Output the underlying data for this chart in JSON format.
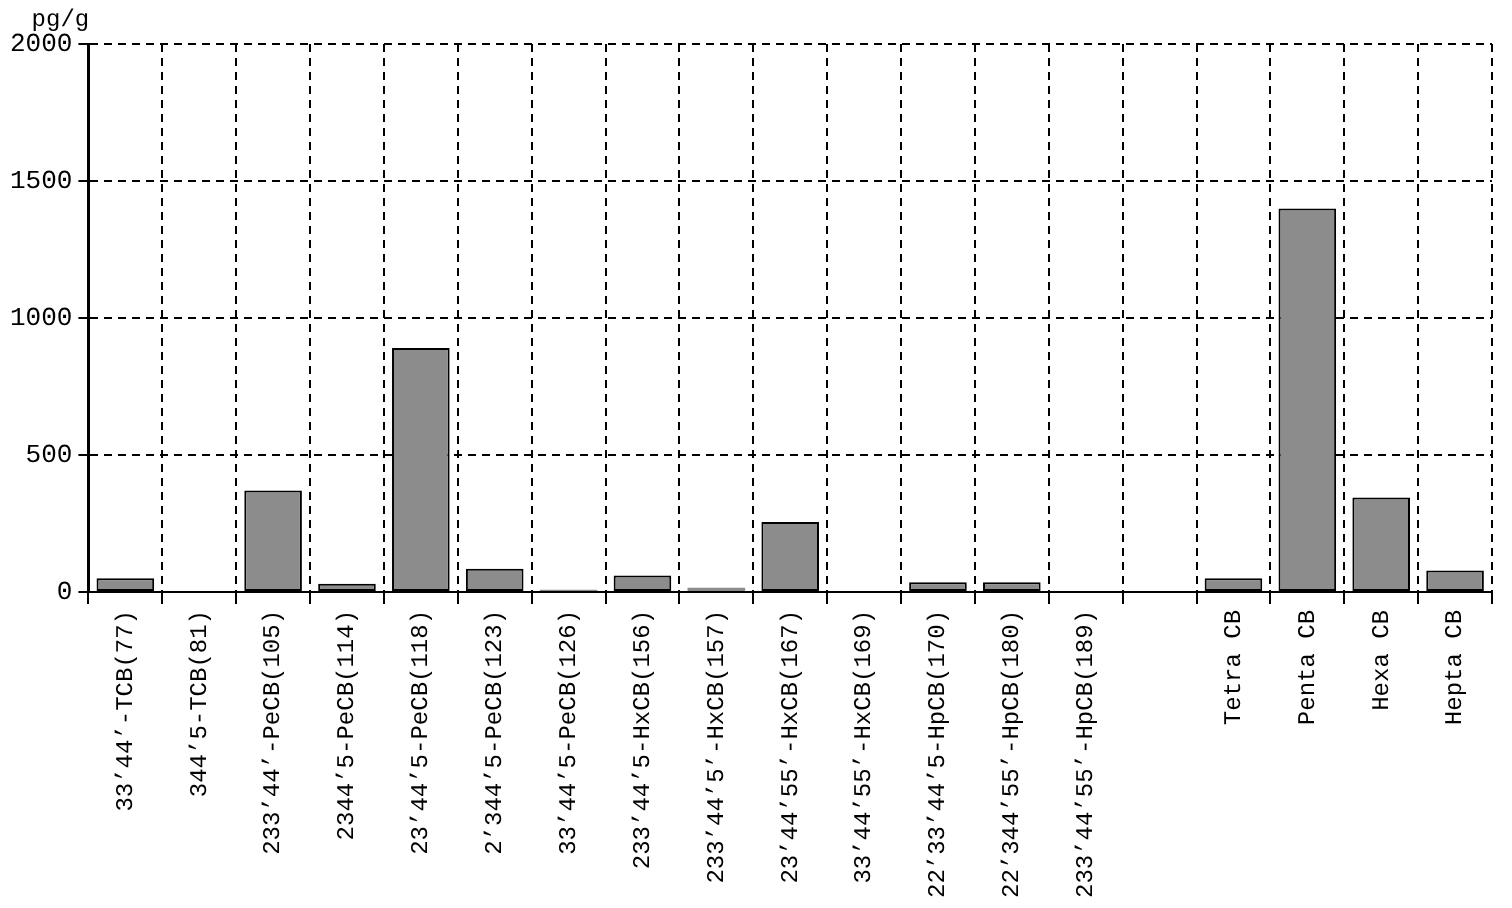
{
  "chart_data": {
    "type": "bar",
    "ylabel": "pg/g",
    "categories": [
      "33’44’-TCB(77)",
      "344’5-TCB(81)",
      "233’44’-PeCB(105)",
      "2344’5-PeCB(114)",
      "23’44’5-PeCB(118)",
      "2’344’5-PeCB(123)",
      "33’44’5-PeCB(126)",
      "233’44’5-HxCB(156)",
      "233’44’5’-HxCB(157)",
      "23’44’55’-HxCB(167)",
      "33’44’55’-HxCB(169)",
      "22’33’44’5-HpCB(170)",
      "22’344’55’-HpCB(180)",
      "233’44’55’-HpCB(189)",
      null,
      "Tetra CB",
      "Penta CB",
      "Hexa CB",
      "Hepta CB"
    ],
    "values": [
      50,
      0,
      370,
      30,
      890,
      85,
      8,
      60,
      15,
      255,
      0,
      35,
      35,
      0,
      null,
      50,
      1400,
      345,
      78
    ],
    "color": "#8c8c8c",
    "ylim": [
      0,
      2000
    ],
    "yticks": [
      0,
      500,
      1000,
      1500,
      2000
    ],
    "grid": true,
    "legend": false
  }
}
